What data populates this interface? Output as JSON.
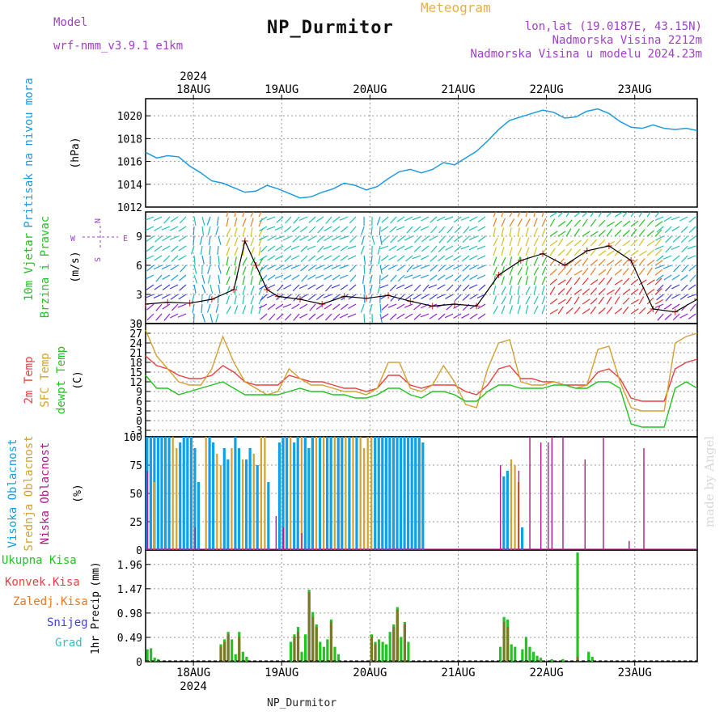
{
  "header": {
    "model_label": "Model",
    "model_name": "wrf-nmm_v3.9.1 e1km",
    "title": "NP_Durmitor",
    "product": "Meteogram",
    "lonlat": "lon,lat (19.0187E, 43.15N)",
    "elevation": "Nadmorska Visina 2212m",
    "model_elevation": "Nadmorska Visina u modelu 2024.23m",
    "footer_station": "NP_Durmitor",
    "watermark": "made by Angel"
  },
  "colors": {
    "pressure": "#1e9be0",
    "temp2m": "#e84040",
    "sfc": "#d4a030",
    "dew": "#22c322",
    "high_cloud": "#10a0e8",
    "mid_cloud": "#d4a030",
    "low_cloud": "#b01890",
    "total_precip": "#22c322",
    "conv_precip": "#e84040",
    "frozen_precip": "#e87820",
    "snow": "#4040e0",
    "graupel": "#30c0c0",
    "header_purple": "#a040c8",
    "header_orange": "#e8b040"
  },
  "chart_data": [
    {
      "type": "line",
      "panel": "pressure",
      "ylabel_main": "Pritisak na nivou mora",
      "ylabel_unit": "(hPa)",
      "x_dates_top": [
        "18AUG",
        "19AUG",
        "20AUG",
        "21AUG",
        "22AUG",
        "23AUG"
      ],
      "year": "2024",
      "ylim": [
        1012,
        1021.5
      ],
      "yticks": [
        1012,
        1014,
        1016,
        1018,
        1020
      ],
      "x": [
        0,
        3,
        6,
        9,
        12,
        15,
        18,
        21,
        24,
        27,
        30,
        33,
        36,
        39,
        42,
        45,
        48,
        51,
        54,
        57,
        60,
        63,
        66,
        69,
        72,
        75,
        78,
        81,
        84,
        87,
        90,
        93,
        96,
        99,
        102,
        105,
        108,
        111,
        114,
        117,
        120,
        123,
        126,
        129,
        132,
        135,
        138,
        141,
        144,
        147,
        150
      ],
      "y": [
        1016.8,
        1016.3,
        1016.5,
        1016.4,
        1015.6,
        1015.0,
        1014.3,
        1014.1,
        1013.7,
        1013.3,
        1013.4,
        1013.9,
        1013.6,
        1013.2,
        1012.8,
        1012.9,
        1013.3,
        1013.6,
        1014.1,
        1013.9,
        1013.5,
        1013.8,
        1014.5,
        1015.1,
        1015.3,
        1015.0,
        1015.3,
        1015.9,
        1015.7,
        1016.3,
        1016.9,
        1017.8,
        1018.8,
        1019.6,
        1019.9,
        1020.2,
        1020.5,
        1020.3,
        1019.8,
        1019.9,
        1020.4,
        1020.6,
        1020.2,
        1019.5,
        1019.0,
        1018.9,
        1019.2,
        1018.9,
        1018.8,
        1018.9,
        1018.7
      ]
    },
    {
      "type": "line",
      "panel": "wind",
      "ylabel_main": "10m Vjetar",
      "ylabel_main2": "Brzina i Pravac",
      "ylabel_unit": "(m/s)",
      "compass": {
        "n": "N",
        "s": "S",
        "e": "E",
        "w": "W"
      },
      "ylim": [
        0,
        11.5
      ],
      "yticks": [
        0,
        3,
        6,
        9
      ],
      "x": [
        0,
        6,
        12,
        18,
        24,
        27,
        30,
        33,
        36,
        42,
        48,
        54,
        60,
        66,
        72,
        78,
        84,
        90,
        96,
        102,
        108,
        114,
        120,
        126,
        132,
        138,
        144,
        150
      ],
      "y": [
        2.0,
        2.2,
        2.1,
        2.5,
        3.5,
        8.5,
        6.0,
        3.5,
        2.8,
        2.5,
        2.0,
        2.8,
        2.6,
        2.9,
        2.3,
        1.8,
        2.0,
        1.8,
        5.0,
        6.5,
        7.2,
        6.0,
        7.5,
        8.0,
        6.5,
        1.5,
        1.2,
        2.5
      ]
    },
    {
      "type": "line",
      "panel": "temperature",
      "ylabel_main": "2m Temp",
      "ylabel_main2": "SFC Temp",
      "ylabel_main3": "dewpt Temp",
      "ylabel_unit": "(C)",
      "ylim": [
        -5,
        30
      ],
      "yticks": [
        -3,
        0,
        3,
        6,
        9,
        12,
        15,
        18,
        21,
        24,
        27,
        30
      ],
      "x": [
        0,
        3,
        6,
        9,
        12,
        15,
        18,
        21,
        24,
        27,
        30,
        33,
        36,
        39,
        42,
        45,
        48,
        51,
        54,
        57,
        60,
        63,
        66,
        69,
        72,
        75,
        78,
        81,
        84,
        87,
        90,
        93,
        96,
        99,
        102,
        105,
        108,
        111,
        114,
        117,
        120,
        123,
        126,
        129,
        132,
        135,
        138,
        141,
        144,
        147,
        150
      ],
      "series": [
        {
          "name": "2m Temp",
          "values": [
            20,
            17,
            16,
            14,
            13,
            13,
            14,
            17,
            15,
            12,
            11,
            11,
            11,
            14,
            13,
            12,
            12,
            11,
            10,
            10,
            9,
            10,
            14,
            14,
            11,
            10,
            11,
            11,
            11,
            9,
            8,
            11,
            16,
            17,
            13,
            13,
            12,
            12,
            11,
            11,
            11,
            15,
            16,
            13,
            7,
            6,
            6,
            6,
            16,
            18,
            19
          ]
        },
        {
          "name": "SFC Temp",
          "values": [
            28,
            20,
            16,
            12,
            11,
            11,
            16,
            26,
            18,
            12,
            10,
            8,
            9,
            16,
            13,
            11,
            11,
            10,
            9,
            9,
            8,
            10,
            18,
            18,
            10,
            9,
            11,
            17,
            12,
            5,
            4,
            16,
            24,
            25,
            12,
            11,
            11,
            12,
            11,
            10,
            11,
            22,
            23,
            12,
            4,
            3,
            3,
            3,
            24,
            26,
            27
          ]
        },
        {
          "name": "dewpt Temp",
          "values": [
            14,
            10,
            10,
            8,
            9,
            10,
            11,
            12,
            10,
            8,
            8,
            8,
            8,
            9,
            10,
            9,
            9,
            8,
            8,
            7,
            7,
            8,
            10,
            10,
            8,
            7,
            9,
            9,
            8,
            6,
            6,
            9,
            11,
            11,
            10,
            10,
            10,
            11,
            11,
            10,
            10,
            12,
            12,
            10,
            -1,
            -2,
            -2,
            -2,
            10,
            12,
            10
          ]
        }
      ]
    },
    {
      "type": "bar",
      "panel": "clouds",
      "ylabel_main": "Visoka Oblacnost",
      "ylabel_main2": "Srednja Oblacnost",
      "ylabel_main3": "Niska Oblacnost",
      "ylabel_unit": "(%)",
      "ylim": [
        0,
        100
      ],
      "yticks": [
        0,
        25,
        50,
        75,
        100
      ],
      "high": [
        [
          0,
          100
        ],
        [
          1,
          100
        ],
        [
          2,
          100
        ],
        [
          3,
          100
        ],
        [
          4,
          100
        ],
        [
          5,
          100
        ],
        [
          6,
          100
        ],
        [
          9,
          95
        ],
        [
          10,
          100
        ],
        [
          11,
          100
        ],
        [
          12,
          100
        ],
        [
          13,
          90
        ],
        [
          14,
          60
        ],
        [
          17,
          100
        ],
        [
          18,
          95
        ],
        [
          21,
          90
        ],
        [
          22,
          80
        ],
        [
          24,
          100
        ],
        [
          25,
          90
        ],
        [
          27,
          80
        ],
        [
          28,
          90
        ],
        [
          30,
          75
        ],
        [
          33,
          60
        ],
        [
          36,
          95
        ],
        [
          37,
          100
        ],
        [
          38,
          100
        ],
        [
          40,
          95
        ],
        [
          41,
          100
        ],
        [
          43,
          100
        ],
        [
          44,
          90
        ],
        [
          45,
          100
        ],
        [
          47,
          100
        ],
        [
          49,
          100
        ],
        [
          50,
          100
        ],
        [
          52,
          100
        ],
        [
          53,
          100
        ],
        [
          55,
          100
        ],
        [
          57,
          100
        ],
        [
          62,
          100
        ],
        [
          63,
          100
        ],
        [
          64,
          100
        ],
        [
          65,
          100
        ],
        [
          66,
          100
        ],
        [
          67,
          100
        ],
        [
          68,
          100
        ],
        [
          69,
          100
        ],
        [
          70,
          100
        ],
        [
          71,
          100
        ],
        [
          72,
          100
        ],
        [
          73,
          100
        ],
        [
          74,
          100
        ],
        [
          75,
          95
        ],
        [
          97,
          65
        ],
        [
          98,
          70
        ],
        [
          102,
          20
        ]
      ],
      "mid": [
        [
          2,
          60
        ],
        [
          7,
          100
        ],
        [
          8,
          90
        ],
        [
          16,
          100
        ],
        [
          19,
          85
        ],
        [
          20,
          75
        ],
        [
          23,
          90
        ],
        [
          26,
          80
        ],
        [
          29,
          85
        ],
        [
          31,
          100
        ],
        [
          32,
          100
        ],
        [
          39,
          100
        ],
        [
          42,
          100
        ],
        [
          46,
          100
        ],
        [
          48,
          100
        ],
        [
          51,
          100
        ],
        [
          54,
          100
        ],
        [
          56,
          100
        ],
        [
          58,
          100
        ],
        [
          59,
          90
        ],
        [
          60,
          100
        ],
        [
          61,
          100
        ],
        [
          99,
          80
        ],
        [
          100,
          75
        ],
        [
          101,
          60
        ]
      ],
      "low": [
        [
          0,
          70
        ],
        [
          13,
          20
        ],
        [
          35,
          30
        ],
        [
          37,
          20
        ],
        [
          42,
          15
        ],
        [
          96,
          75
        ],
        [
          101,
          70
        ],
        [
          104,
          100
        ],
        [
          107,
          95
        ],
        [
          109,
          95
        ],
        [
          110,
          100
        ],
        [
          113,
          100
        ],
        [
          119,
          80
        ],
        [
          124,
          100
        ],
        [
          131,
          8
        ],
        [
          135,
          90
        ]
      ]
    },
    {
      "type": "bar",
      "panel": "precipitation",
      "legend": [
        "Ukupna Kisa",
        "Konvek.Kisa",
        "Zaledj.Kisa",
        "Snijeg",
        "Grad"
      ],
      "ylabel_main": "1hr Precip",
      "ylabel_unit": "(mm)",
      "x_dates_bottom": [
        "18AUG",
        "19AUG",
        "20AUG",
        "21AUG",
        "22AUG",
        "23AUG"
      ],
      "year": "2024",
      "ylim": [
        0,
        2.25
      ],
      "yticks": [
        0,
        0.49,
        0.98,
        1.47,
        1.96
      ],
      "total": [
        [
          0,
          0.25
        ],
        [
          1,
          0.27
        ],
        [
          2,
          0.08
        ],
        [
          3,
          0.05
        ],
        [
          20,
          0.35
        ],
        [
          21,
          0.45
        ],
        [
          22,
          0.6
        ],
        [
          23,
          0.45
        ],
        [
          24,
          0.15
        ],
        [
          25,
          0.6
        ],
        [
          26,
          0.2
        ],
        [
          27,
          0.1
        ],
        [
          39,
          0.4
        ],
        [
          40,
          0.55
        ],
        [
          41,
          0.7
        ],
        [
          42,
          0.2
        ],
        [
          43,
          0.55
        ],
        [
          44,
          1.45
        ],
        [
          45,
          1.0
        ],
        [
          46,
          0.75
        ],
        [
          47,
          0.4
        ],
        [
          48,
          0.3
        ],
        [
          49,
          0.45
        ],
        [
          50,
          0.85
        ],
        [
          51,
          0.3
        ],
        [
          52,
          0.15
        ],
        [
          61,
          0.55
        ],
        [
          62,
          0.4
        ],
        [
          63,
          0.45
        ],
        [
          64,
          0.4
        ],
        [
          65,
          0.35
        ],
        [
          66,
          0.6
        ],
        [
          67,
          0.75
        ],
        [
          68,
          1.1
        ],
        [
          69,
          0.5
        ],
        [
          70,
          0.8
        ],
        [
          71,
          0.4
        ],
        [
          96,
          0.3
        ],
        [
          97,
          0.9
        ],
        [
          98,
          0.85
        ],
        [
          99,
          0.35
        ],
        [
          100,
          0.3
        ],
        [
          102,
          0.25
        ],
        [
          103,
          0.5
        ],
        [
          104,
          0.3
        ],
        [
          105,
          0.2
        ],
        [
          106,
          0.12
        ],
        [
          107,
          0.08
        ],
        [
          110,
          0.05
        ],
        [
          113,
          0.05
        ],
        [
          117,
          2.2
        ],
        [
          120,
          0.2
        ],
        [
          121,
          0.1
        ]
      ],
      "conv": [
        [
          20,
          0.3
        ],
        [
          21,
          0.4
        ],
        [
          22,
          0.55
        ],
        [
          25,
          0.5
        ],
        [
          40,
          0.5
        ],
        [
          41,
          0.6
        ],
        [
          44,
          1.4
        ],
        [
          45,
          0.9
        ],
        [
          46,
          0.7
        ],
        [
          50,
          0.8
        ],
        [
          61,
          0.5
        ],
        [
          62,
          0.35
        ],
        [
          67,
          0.7
        ],
        [
          68,
          1.05
        ],
        [
          70,
          0.75
        ],
        [
          97,
          0.8
        ],
        [
          98,
          0.7
        ],
        [
          117,
          0.1
        ]
      ]
    }
  ]
}
